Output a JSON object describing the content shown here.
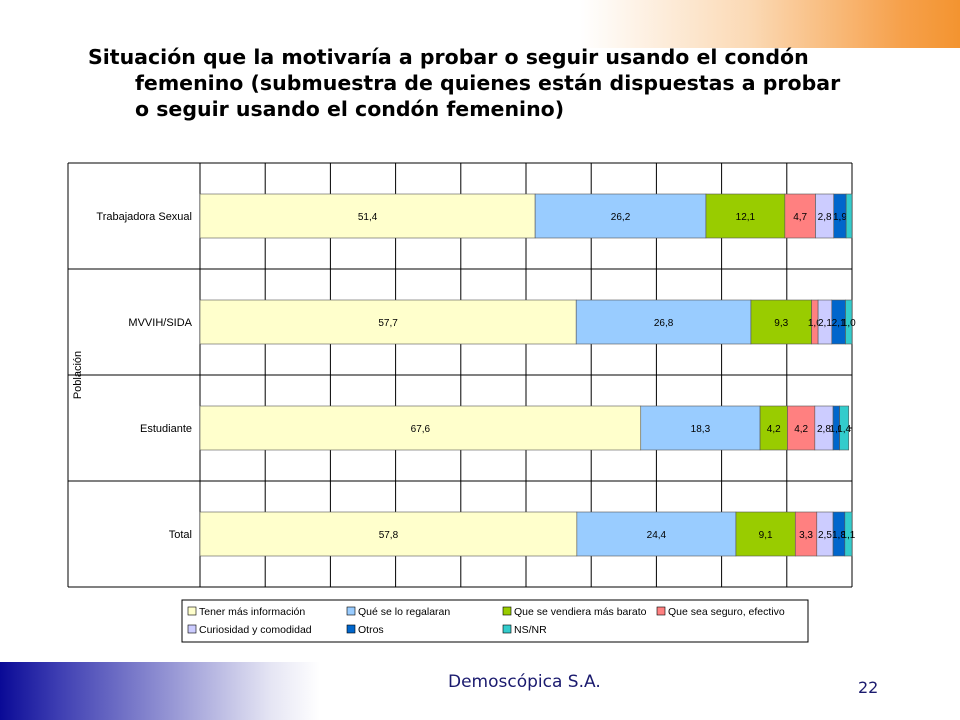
{
  "slide": {
    "title_lines": [
      "Situación que la motivaría a probar o seguir usando el condón",
      "femenino (submuestra de quienes están dispuestas a probar",
      "o seguir usando el condón femenino)"
    ],
    "company": "Demoscópica S.A.",
    "page_number": "22"
  },
  "chart_data": {
    "type": "bar",
    "orientation": "horizontal",
    "stacked": true,
    "ylabel": "Población",
    "xlim": [
      0,
      100
    ],
    "grid": true,
    "legend_position": "bottom",
    "categories": [
      "Trabajadora Sexual",
      "MVVIH/SIDA",
      "Estudiante",
      "Total"
    ],
    "series": [
      {
        "name": "Tener más información",
        "color": "#ffffcc",
        "values": [
          51.4,
          57.7,
          67.6,
          57.8
        ],
        "labels": [
          "51,4",
          "57,7",
          "67,6",
          "57,8"
        ]
      },
      {
        "name": "Qué se lo regalaran",
        "color": "#99ccff",
        "values": [
          26.2,
          26.8,
          18.3,
          24.4
        ],
        "labels": [
          "26,2",
          "26,8",
          "18,3",
          "24,4"
        ]
      },
      {
        "name": "Que se vendiera más barato",
        "color": "#99cc00",
        "values": [
          12.1,
          9.3,
          4.2,
          9.1
        ],
        "labels": [
          "12,1",
          "9,3",
          "4,2",
          "9,1"
        ]
      },
      {
        "name": "Que sea seguro, efectivo",
        "color": "#ff8080",
        "values": [
          4.7,
          1.0,
          4.2,
          3.3
        ],
        "labels": [
          "4,7",
          "1,0",
          "4,2",
          "3,3"
        ]
      },
      {
        "name": "Curiosidad y comodidad",
        "color": "#ccccff",
        "values": [
          2.8,
          2.1,
          2.8,
          2.5
        ],
        "labels": [
          "2,8",
          "2,1",
          "2,8",
          "2,5"
        ]
      },
      {
        "name": "Otros",
        "color": "#0066cc",
        "values": [
          1.9,
          2.1,
          1.0,
          1.8
        ],
        "labels": [
          "1,9",
          "2,1",
          "1,0",
          "1,8"
        ]
      },
      {
        "name": "NS/NR",
        "color": "#33cccc",
        "values": [
          0.9,
          1.0,
          1.4,
          1.1
        ],
        "labels": [
          "",
          "1,0",
          "1,4",
          "1,1"
        ]
      }
    ]
  }
}
